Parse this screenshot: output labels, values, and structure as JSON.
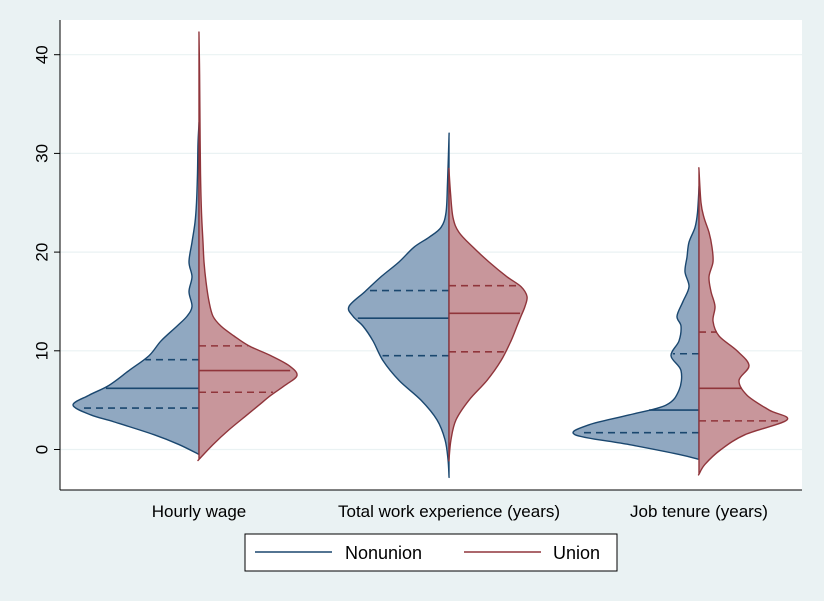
{
  "chart_data": {
    "type": "violin",
    "split": true,
    "ylim": [
      -4,
      43
    ],
    "yticks": [
      0,
      10,
      20,
      30,
      40
    ],
    "grid": true,
    "legend_position": "bottom",
    "categories": [
      "Hourly wage",
      "Total work experience (years)",
      "Job tenure (years)"
    ],
    "series": [
      {
        "name": "Nonunion",
        "color": "#1a476f",
        "fill": "#90a8c1",
        "quartiles": [
          [
            4.2,
            6.2,
            9.1
          ],
          [
            9.5,
            13.3,
            16.1
          ],
          [
            1.7,
            4.0,
            9.7
          ]
        ],
        "range": [
          [
            -0.5,
            33.0
          ],
          [
            -2.7,
            31.7
          ],
          [
            -1.0,
            26.5
          ]
        ]
      },
      {
        "name": "Union",
        "color": "#90353b",
        "fill": "#c8969b",
        "quartiles": [
          [
            5.8,
            8.0,
            10.5
          ],
          [
            9.9,
            13.8,
            16.6
          ],
          [
            2.9,
            6.2,
            11.9
          ]
        ],
        "range": [
          [
            -1.0,
            42.0
          ],
          [
            -1.0,
            28.3
          ],
          [
            -2.5,
            28.3
          ]
        ]
      }
    ]
  }
}
